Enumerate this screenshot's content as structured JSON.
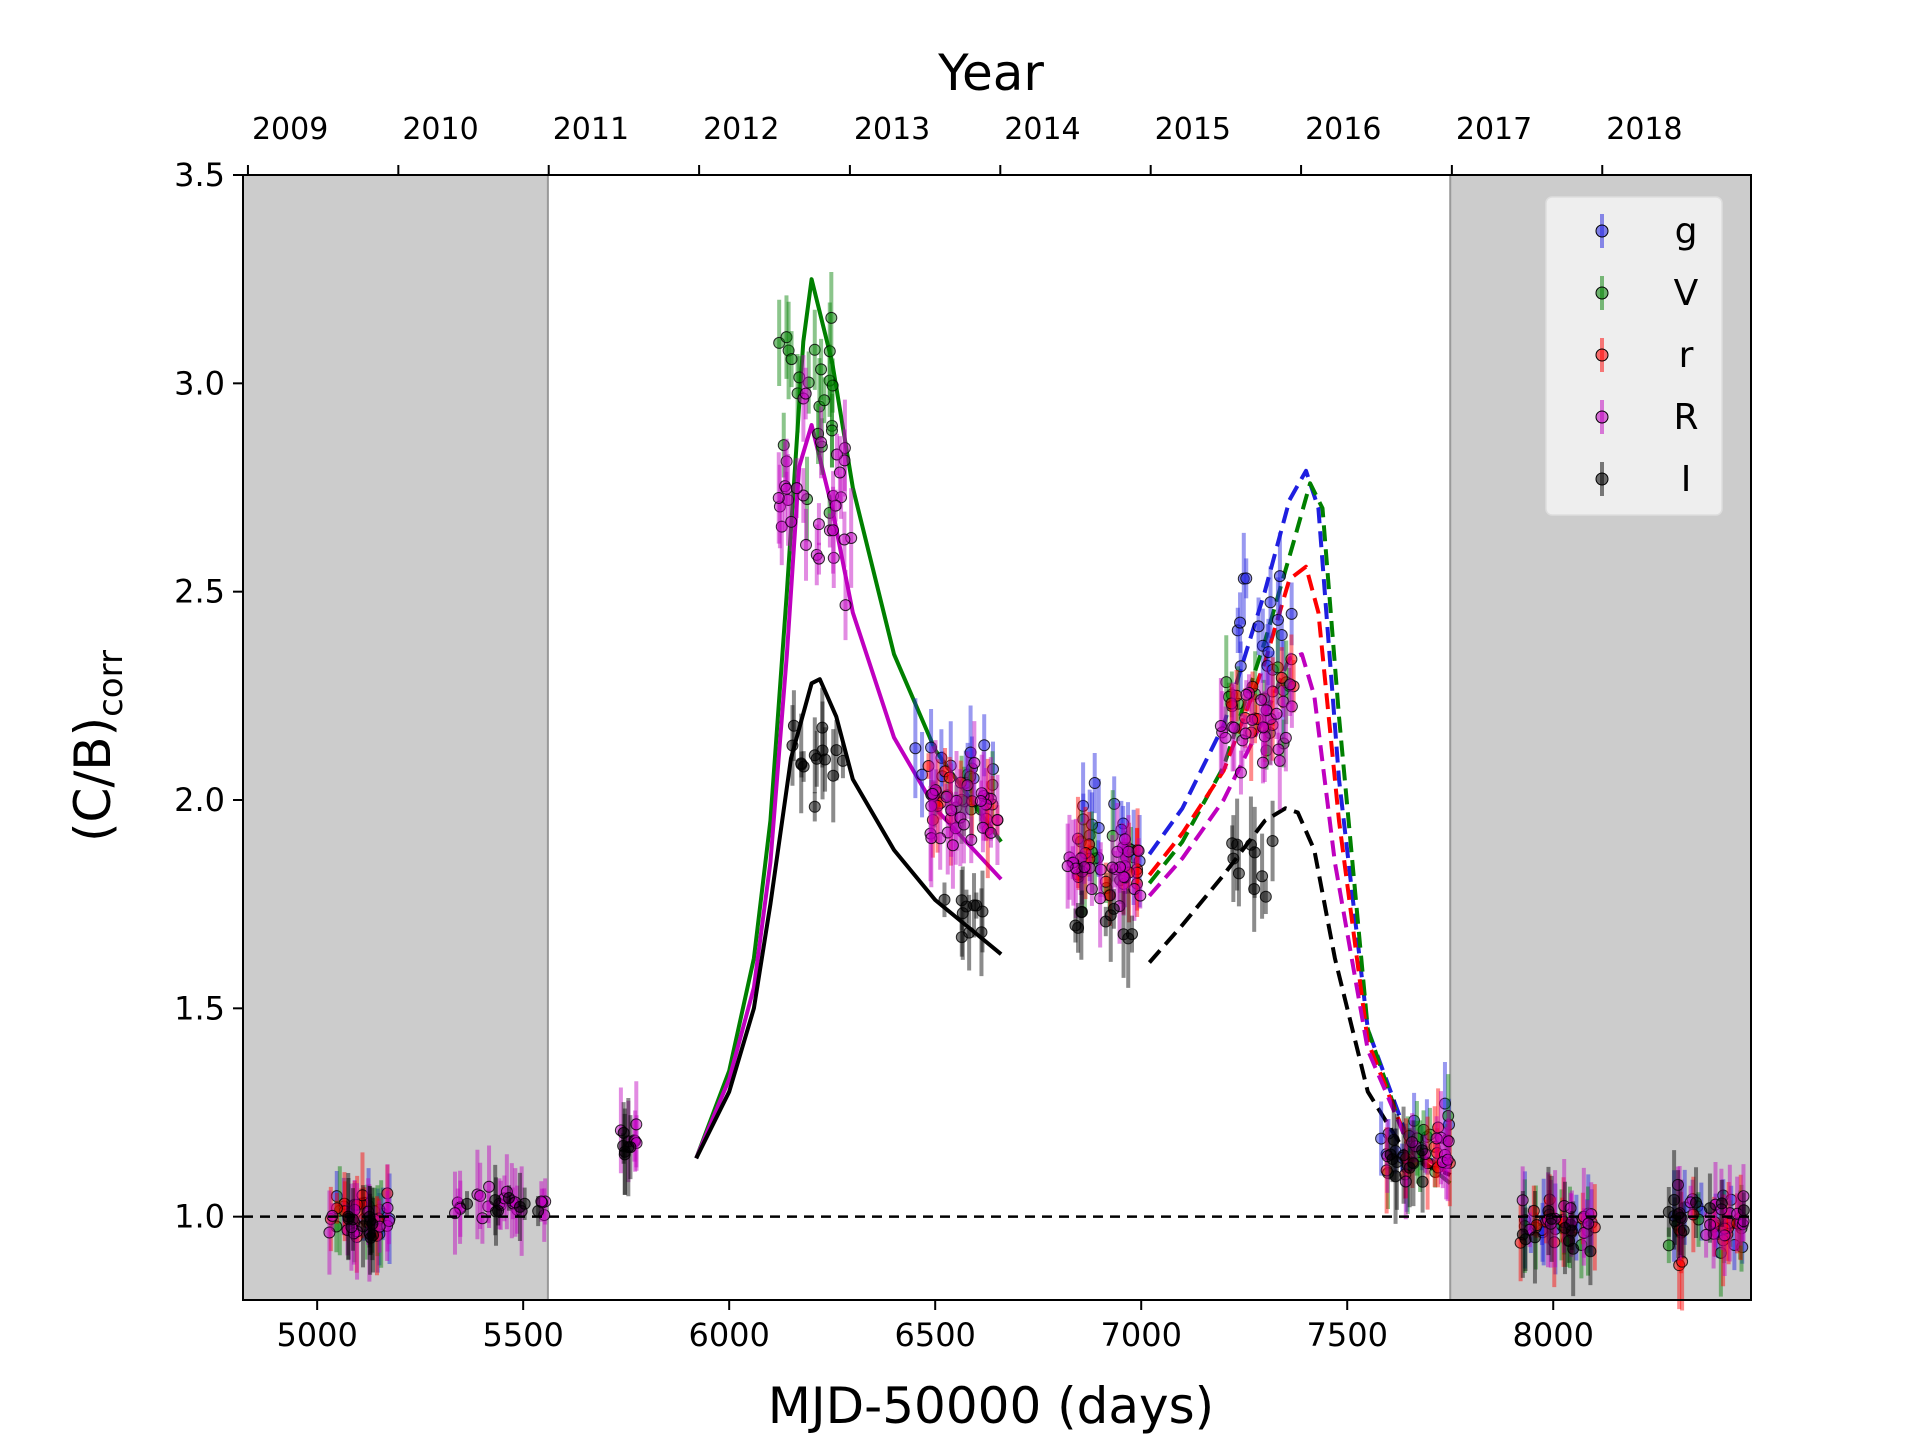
{
  "chart_data": {
    "type": "scatter",
    "title": "",
    "xlabel": "MJD-50000 (days)",
    "ylabel_main": "(C/B)",
    "ylabel_sub": "corr",
    "top_axis_label": "Year",
    "xlim": [
      4820,
      8480
    ],
    "ylim": [
      0.8,
      3.5
    ],
    "x_ticks": [
      5000,
      5500,
      6000,
      6500,
      7000,
      7500,
      8000
    ],
    "y_ticks": [
      1.0,
      1.5,
      2.0,
      2.5,
      3.0,
      3.5
    ],
    "y_tick_labels": [
      "1.0",
      "1.5",
      "2.0",
      "2.5",
      "3.0",
      "3.5"
    ],
    "year_ticks": [
      {
        "label": "2009",
        "x": 4832
      },
      {
        "label": "2010",
        "x": 5197
      },
      {
        "label": "2011",
        "x": 5562
      },
      {
        "label": "2012",
        "x": 5927
      },
      {
        "label": "2013",
        "x": 6293
      },
      {
        "label": "2014",
        "x": 6658
      },
      {
        "label": "2015",
        "x": 7023
      },
      {
        "label": "2016",
        "x": 7388
      },
      {
        "label": "2017",
        "x": 7754
      },
      {
        "label": "2018",
        "x": 8119
      }
    ],
    "shaded_regions": [
      [
        4820,
        5560
      ],
      [
        7750,
        8480
      ]
    ],
    "reference_line": {
      "y": 1.0,
      "style": "dashed",
      "color": "#000000"
    },
    "grid": false,
    "legend_position": "top-right",
    "colors": {
      "g": "#1f1fe0",
      "V": "#008000",
      "r": "#ff0000",
      "R": "#bf00bf",
      "I": "#000000",
      "shade": "#cccccc"
    },
    "legend": [
      "g",
      "V",
      "r",
      "R",
      "I"
    ],
    "series": [
      {
        "name": "g",
        "clusters": [
          {
            "x": [
              5020,
              5180
            ],
            "y": 1.0,
            "sd": 0.05,
            "n": 10
          },
          {
            "x": [
              6450,
              6660
            ],
            "y": 2.08,
            "sd": 0.08,
            "n": 14
          },
          {
            "x": [
              6840,
              7000
            ],
            "y": 1.93,
            "sd": 0.09,
            "n": 14
          },
          {
            "x": [
              7200,
              7370
            ],
            "y": 2.4,
            "sd": 0.15,
            "n": 16
          },
          {
            "x": [
              7580,
              7750
            ],
            "y": 1.2,
            "sd": 0.1,
            "n": 12
          },
          {
            "x": [
              7920,
              8100
            ],
            "y": 0.98,
            "sd": 0.05,
            "n": 10
          },
          {
            "x": [
              8280,
              8470
            ],
            "y": 1.0,
            "sd": 0.08,
            "n": 12
          }
        ]
      },
      {
        "name": "V",
        "clusters": [
          {
            "x": [
              5020,
              5180
            ],
            "y": 0.99,
            "sd": 0.04,
            "n": 8
          },
          {
            "x": [
              6120,
              6260
            ],
            "y": 2.95,
            "sd": 0.25,
            "n": 22
          },
          {
            "x": [
              6480,
              6660
            ],
            "y": 2.02,
            "sd": 0.08,
            "n": 10
          },
          {
            "x": [
              6840,
              7000
            ],
            "y": 1.86,
            "sd": 0.08,
            "n": 10
          },
          {
            "x": [
              7200,
              7370
            ],
            "y": 2.25,
            "sd": 0.12,
            "n": 12
          },
          {
            "x": [
              7580,
              7750
            ],
            "y": 1.15,
            "sd": 0.09,
            "n": 10
          },
          {
            "x": [
              7920,
              8100
            ],
            "y": 0.97,
            "sd": 0.05,
            "n": 8
          },
          {
            "x": [
              8280,
              8470
            ],
            "y": 0.98,
            "sd": 0.06,
            "n": 8
          }
        ]
      },
      {
        "name": "r",
        "clusters": [
          {
            "x": [
              5020,
              5180
            ],
            "y": 1.0,
            "sd": 0.06,
            "n": 14
          },
          {
            "x": [
              6480,
              6660
            ],
            "y": 2.0,
            "sd": 0.1,
            "n": 14
          },
          {
            "x": [
              6840,
              7020
            ],
            "y": 1.85,
            "sd": 0.1,
            "n": 14
          },
          {
            "x": [
              7200,
              7370
            ],
            "y": 2.22,
            "sd": 0.12,
            "n": 14
          },
          {
            "x": [
              7580,
              7750
            ],
            "y": 1.13,
            "sd": 0.07,
            "n": 10
          },
          {
            "x": [
              7920,
              8110
            ],
            "y": 0.99,
            "sd": 0.05,
            "n": 12
          },
          {
            "x": [
              8280,
              8470
            ],
            "y": 0.97,
            "sd": 0.07,
            "n": 14
          }
        ]
      },
      {
        "name": "R",
        "clusters": [
          {
            "x": [
              5020,
              5180
            ],
            "y": 0.99,
            "sd": 0.05,
            "n": 14
          },
          {
            "x": [
              5330,
              5560
            ],
            "y": 1.03,
            "sd": 0.04,
            "n": 22
          },
          {
            "x": [
              5730,
              5780
            ],
            "y": 1.19,
            "sd": 0.04,
            "n": 6
          },
          {
            "x": [
              6120,
              6300
            ],
            "y": 2.75,
            "sd": 0.25,
            "n": 30
          },
          {
            "x": [
              6480,
              6660
            ],
            "y": 1.97,
            "sd": 0.1,
            "n": 26
          },
          {
            "x": [
              6820,
              7000
            ],
            "y": 1.83,
            "sd": 0.08,
            "n": 26
          },
          {
            "x": [
              7180,
              7370
            ],
            "y": 2.15,
            "sd": 0.12,
            "n": 24
          },
          {
            "x": [
              7580,
              7750
            ],
            "y": 1.15,
            "sd": 0.07,
            "n": 12
          },
          {
            "x": [
              7920,
              8100
            ],
            "y": 0.99,
            "sd": 0.05,
            "n": 14
          },
          {
            "x": [
              8280,
              8470
            ],
            "y": 1.0,
            "sd": 0.07,
            "n": 16
          }
        ]
      },
      {
        "name": "I",
        "clusters": [
          {
            "x": [
              5040,
              5180
            ],
            "y": 0.97,
            "sd": 0.04,
            "n": 10
          },
          {
            "x": [
              5360,
              5540
            ],
            "y": 1.03,
            "sd": 0.03,
            "n": 8
          },
          {
            "x": [
              5740,
              5780
            ],
            "y": 1.17,
            "sd": 0.04,
            "n": 6
          },
          {
            "x": [
              6130,
              6280
            ],
            "y": 2.1,
            "sd": 0.15,
            "n": 14
          },
          {
            "x": [
              6520,
              6620
            ],
            "y": 1.72,
            "sd": 0.06,
            "n": 10
          },
          {
            "x": [
              6840,
              7000
            ],
            "y": 1.72,
            "sd": 0.06,
            "n": 10
          },
          {
            "x": [
              7200,
              7330
            ],
            "y": 1.85,
            "sd": 0.1,
            "n": 10
          },
          {
            "x": [
              7580,
              7750
            ],
            "y": 1.15,
            "sd": 0.06,
            "n": 10
          },
          {
            "x": [
              7920,
              8100
            ],
            "y": 0.96,
            "sd": 0.05,
            "n": 10
          },
          {
            "x": [
              8280,
              8470
            ],
            "y": 1.0,
            "sd": 0.05,
            "n": 10
          }
        ]
      }
    ],
    "model_curves": [
      {
        "name": "V-fit",
        "color": "#008000",
        "style": "solid",
        "x": [
          5920,
          6000,
          6060,
          6100,
          6140,
          6180,
          6200,
          6250,
          6300,
          6400,
          6500,
          6660
        ],
        "y": [
          1.14,
          1.35,
          1.62,
          1.95,
          2.5,
          3.1,
          3.25,
          3.05,
          2.75,
          2.35,
          2.12,
          1.9
        ]
      },
      {
        "name": "R-fit",
        "color": "#bf00bf",
        "style": "solid",
        "x": [
          5920,
          6000,
          6060,
          6100,
          6140,
          6170,
          6200,
          6250,
          6300,
          6400,
          6500,
          6660
        ],
        "y": [
          1.14,
          1.33,
          1.55,
          1.85,
          2.35,
          2.8,
          2.9,
          2.7,
          2.45,
          2.15,
          1.98,
          1.81
        ]
      },
      {
        "name": "I-fit",
        "color": "#000000",
        "style": "solid",
        "x": [
          5920,
          6000,
          6060,
          6100,
          6150,
          6200,
          6220,
          6260,
          6300,
          6400,
          6500,
          6660
        ],
        "y": [
          1.14,
          1.3,
          1.5,
          1.75,
          2.1,
          2.28,
          2.29,
          2.2,
          2.05,
          1.88,
          1.76,
          1.63
        ]
      },
      {
        "name": "g-pred",
        "color": "#1f1fe0",
        "style": "dashed",
        "x": [
          7020,
          7100,
          7200,
          7300,
          7360,
          7400,
          7430,
          7480,
          7550,
          7650,
          7750
        ],
        "y": [
          1.87,
          1.98,
          2.18,
          2.5,
          2.72,
          2.79,
          2.7,
          2.05,
          1.45,
          1.18,
          1.1
        ]
      },
      {
        "name": "V-pred",
        "color": "#008000",
        "style": "dashed",
        "x": [
          7020,
          7100,
          7200,
          7300,
          7370,
          7410,
          7440,
          7480,
          7550,
          7650,
          7750
        ],
        "y": [
          1.8,
          1.9,
          2.08,
          2.38,
          2.62,
          2.76,
          2.7,
          2.2,
          1.45,
          1.16,
          1.08
        ]
      },
      {
        "name": "r-pred",
        "color": "#ff0000",
        "style": "dashed",
        "x": [
          7020,
          7100,
          7200,
          7300,
          7360,
          7400,
          7430,
          7480,
          7550,
          7650,
          7750
        ],
        "y": [
          1.82,
          1.92,
          2.07,
          2.33,
          2.53,
          2.56,
          2.45,
          1.95,
          1.42,
          1.17,
          1.1
        ]
      },
      {
        "name": "R-pred",
        "color": "#bf00bf",
        "style": "dashed",
        "x": [
          7020,
          7100,
          7200,
          7300,
          7360,
          7390,
          7420,
          7470,
          7550,
          7650,
          7750
        ],
        "y": [
          1.77,
          1.86,
          2.0,
          2.2,
          2.34,
          2.35,
          2.25,
          1.85,
          1.4,
          1.17,
          1.1
        ]
      },
      {
        "name": "I-pred",
        "color": "#000000",
        "style": "dashed",
        "x": [
          7020,
          7100,
          7200,
          7300,
          7350,
          7380,
          7420,
          7470,
          7550,
          7650,
          7750
        ],
        "y": [
          1.61,
          1.7,
          1.82,
          1.95,
          1.98,
          1.97,
          1.88,
          1.62,
          1.3,
          1.14,
          1.1
        ]
      }
    ]
  }
}
